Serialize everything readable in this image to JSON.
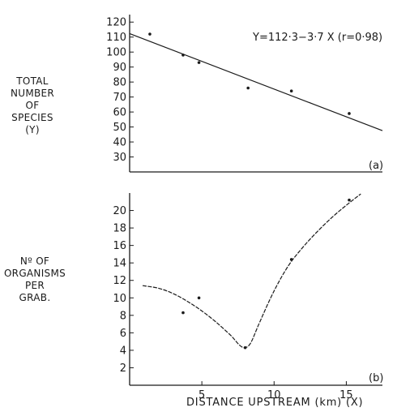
{
  "chart_data": [
    {
      "type": "scatter",
      "panel_label": "(a)",
      "equation": "Y=112·3−3·7 X (r=0·98)",
      "ylabel_lines": [
        "TOTAL",
        "NUMBER",
        "OF",
        "SPECIES",
        "(Y)"
      ],
      "xlim": [
        0,
        17.5
      ],
      "ylim": [
        20,
        125
      ],
      "yticks": [
        30,
        40,
        50,
        60,
        70,
        80,
        90,
        100,
        110,
        120
      ],
      "ytick_labels": [
        "30",
        "40",
        "50",
        "60",
        "70",
        "80",
        "90",
        "100",
        "110",
        "120"
      ],
      "x": [
        1.4,
        3.7,
        4.8,
        8.2,
        11.2,
        15.2
      ],
      "y": [
        112,
        98,
        93,
        76,
        74,
        59
      ],
      "fit": {
        "slope": -3.7,
        "intercept": 112.3,
        "x_range": [
          0,
          17.5
        ]
      },
      "grid": false
    },
    {
      "type": "line",
      "panel_label": "(b)",
      "ylabel_lines": [
        "Nº OF",
        "ORGANISMS",
        "PER",
        "GRAB."
      ],
      "xlabel": "DISTANCE UPSTREAM (km) (X)",
      "xlim": [
        0,
        17.5
      ],
      "ylim": [
        0,
        22
      ],
      "xticks": [
        5,
        10,
        15
      ],
      "xtick_labels": [
        "5",
        "10",
        "15"
      ],
      "yticks": [
        2,
        4,
        6,
        8,
        10,
        12,
        14,
        16,
        18,
        20
      ],
      "ytick_labels": [
        "2",
        "4",
        "6",
        "8",
        "10",
        "12",
        "14",
        "16",
        "18",
        "20"
      ],
      "x": [
        3.7,
        4.8,
        8.0,
        11.2,
        15.2
      ],
      "y": [
        8.3,
        10.0,
        4.3,
        14.4,
        21.2
      ],
      "curve": [
        [
          0.9,
          11.4
        ],
        [
          2.0,
          11.1
        ],
        [
          3.0,
          10.5
        ],
        [
          4.0,
          9.6
        ],
        [
          5.0,
          8.5
        ],
        [
          6.0,
          7.2
        ],
        [
          7.0,
          5.7
        ],
        [
          7.6,
          4.6
        ],
        [
          8.0,
          4.3
        ],
        [
          8.4,
          4.9
        ],
        [
          9.0,
          7.2
        ],
        [
          10.0,
          10.8
        ],
        [
          11.0,
          13.7
        ],
        [
          12.0,
          15.8
        ],
        [
          13.0,
          17.6
        ],
        [
          14.0,
          19.2
        ],
        [
          15.0,
          20.6
        ],
        [
          16.0,
          21.9
        ]
      ],
      "grid": false
    }
  ]
}
